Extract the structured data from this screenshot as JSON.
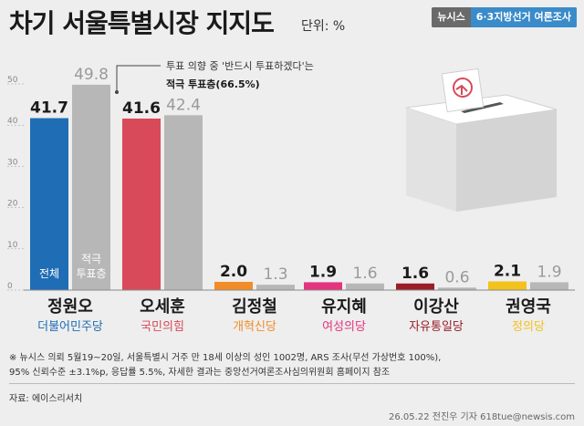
{
  "header": {
    "title": "차기 서울특별시장 지지도",
    "unit": "단위: %",
    "brand_name": "뉴시스",
    "brand_tag": "6·3지방선거 여론조사"
  },
  "colors": {
    "overall_gray": "#b7b7b7",
    "axis": "#999999"
  },
  "chart_data": {
    "type": "bar",
    "categories": [
      "정원오",
      "오세훈",
      "김정철",
      "유지혜",
      "이강산",
      "권영국"
    ],
    "parties": [
      "더불어민주당",
      "국민의힘",
      "개혁신당",
      "여성의당",
      "자유통일당",
      "정의당"
    ],
    "party_colors": [
      "#1f6db5",
      "#d84a5a",
      "#f28c28",
      "#e4337f",
      "#9a1e28",
      "#f2c21d"
    ],
    "series": [
      {
        "name": "전체",
        "values": [
          41.7,
          41.6,
          2.0,
          1.9,
          1.6,
          2.1
        ]
      },
      {
        "name": "적극 투표층",
        "values": [
          49.8,
          42.4,
          1.3,
          1.6,
          0.6,
          1.9
        ]
      }
    ],
    "ylim": [
      0,
      50
    ],
    "yticks": [
      0,
      10,
      20,
      30,
      40,
      50
    ],
    "legend_labels": [
      "전체",
      "적극 투표층"
    ],
    "annotation": {
      "line1": "투표 의향 중 '반드시 투표하겠다'는",
      "line2": "적극 투표층(66.5%)"
    },
    "legend": "inside-first-group"
  },
  "footnote": {
    "line1": "※ 뉴시스 의뢰 5월19~20일, 서울특별시 거주 만 18세 이상의 성인 1002명, ARS 조사(무선 가상번호 100%),",
    "line2": "95% 신뢰수준 ±3.1%p, 응답률 5.5%, 자세한 결과는 중앙선거여론조사심의위원회 홈페이지 참조"
  },
  "source": "자료: 에이스리서치",
  "credit": "26.05.22 전진우 기자 618tue@newsis.com"
}
